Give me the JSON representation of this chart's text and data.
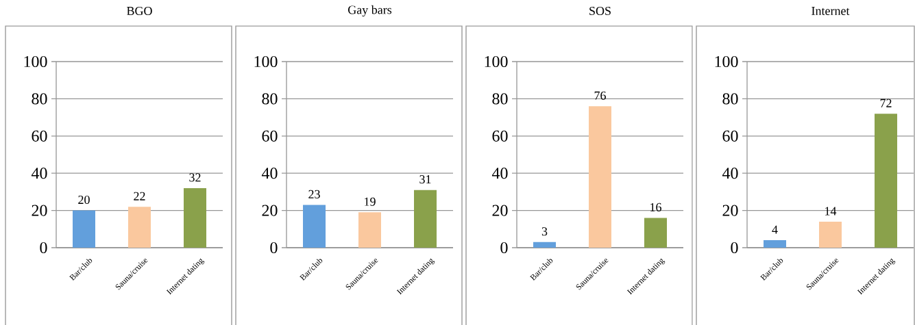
{
  "chart_data": [
    {
      "type": "bar",
      "title": "BGO",
      "categories": [
        "Bar/club",
        "Sauna/cruise",
        "Internet dating"
      ],
      "values": [
        20,
        22,
        32
      ],
      "colors": [
        "#629fdc",
        "#fac89e",
        "#8aa14b"
      ],
      "ylim": [
        0,
        100
      ],
      "yticks": [
        0,
        20,
        40,
        60,
        80,
        100
      ],
      "grid": "y",
      "data_labels": true
    },
    {
      "type": "bar",
      "title": "Gay bars",
      "categories": [
        "Bar/club",
        "Sauna/cruise",
        "Internet dating"
      ],
      "values": [
        23,
        19,
        31
      ],
      "colors": [
        "#629fdc",
        "#fac89e",
        "#8aa14b"
      ],
      "ylim": [
        0,
        100
      ],
      "yticks": [
        0,
        20,
        40,
        60,
        80,
        100
      ],
      "grid": "y",
      "data_labels": true
    },
    {
      "type": "bar",
      "title": "SOS",
      "categories": [
        "Bar/club",
        "Sauna/cruise",
        "Internet dating"
      ],
      "values": [
        3,
        76,
        16
      ],
      "colors": [
        "#629fdc",
        "#fac89e",
        "#8aa14b"
      ],
      "ylim": [
        0,
        100
      ],
      "yticks": [
        0,
        20,
        40,
        60,
        80,
        100
      ],
      "grid": "y",
      "data_labels": true
    },
    {
      "type": "bar",
      "title": "Internet",
      "categories": [
        "Bar/club",
        "Sauna/cruise",
        "Internet dating"
      ],
      "values": [
        4,
        14,
        72
      ],
      "colors": [
        "#629fdc",
        "#fac89e",
        "#8aa14b"
      ],
      "ylim": [
        0,
        100
      ],
      "yticks": [
        0,
        20,
        40,
        60,
        80,
        100
      ],
      "grid": "y",
      "data_labels": true
    }
  ]
}
